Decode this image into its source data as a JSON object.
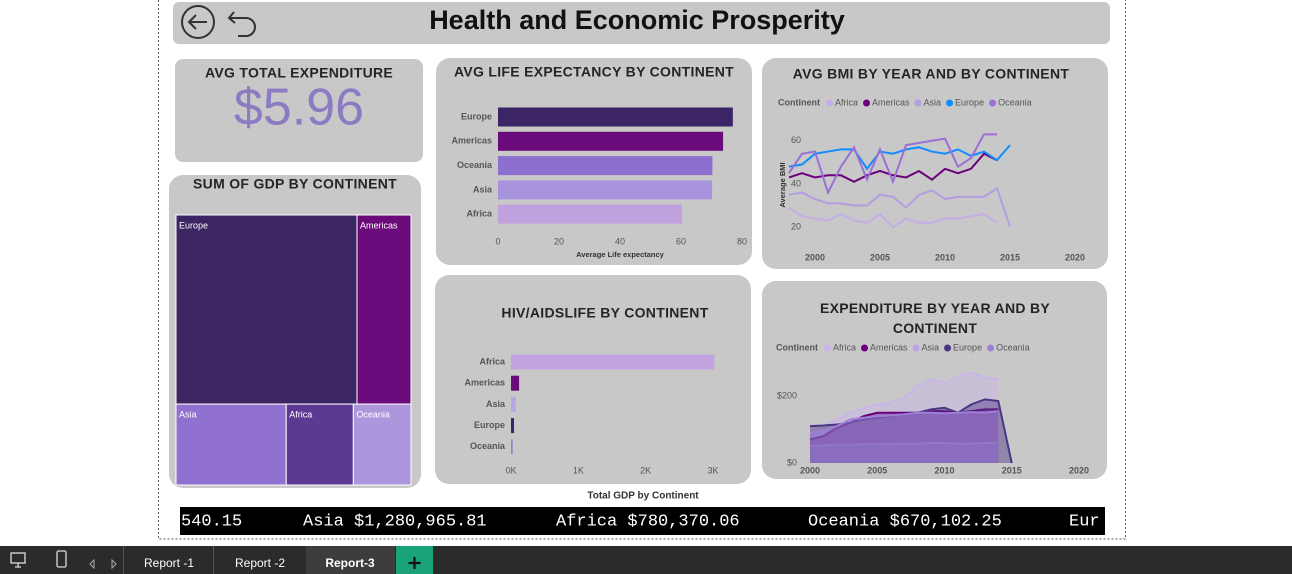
{
  "header": {
    "title": "Health and Economic Prosperity"
  },
  "card": {
    "title": "AVG TOTAL EXPENDITURE",
    "value": "$5.96"
  },
  "chart_data": [
    {
      "type": "treemap",
      "title": "SUM OF GDP BY CONTINENT",
      "categories": [
        "Europe",
        "Americas",
        "Asia",
        "Africa",
        "Oceania"
      ],
      "values": [
        4919000,
        1467000,
        1280965.81,
        780370.06,
        670102.25
      ],
      "colors": [
        "#3b2562",
        "#6b0a7b",
        "#9071cf",
        "#5c3a93",
        "#ad97dc"
      ]
    },
    {
      "type": "bar",
      "orientation": "horizontal",
      "title": "AVG LIFE EXPECTANCY BY CONTINENT",
      "categories": [
        "Europe",
        "Americas",
        "Oceania",
        "Asia",
        "Africa"
      ],
      "values": [
        77,
        73.8,
        70.3,
        70.2,
        60.3
      ],
      "colors": [
        "#3b2566",
        "#6b0a7b",
        "#8d6fcf",
        "#a893dd",
        "#bfa2dd"
      ],
      "x_label": "Average Life expectancy",
      "xlim": [
        0,
        80
      ],
      "xticks": [
        0,
        20,
        40,
        60,
        80
      ]
    },
    {
      "type": "bar",
      "orientation": "horizontal",
      "title": "HIV/AIDSLIFE BY CONTINENT",
      "categories": [
        "Africa",
        "Americas",
        "Asia",
        "Europe",
        "Oceania"
      ],
      "values": [
        3020,
        120,
        70,
        45,
        25
      ],
      "colors": [
        "#c3a3e0",
        "#6b0a7b",
        "#b8a5e4",
        "#3c2566",
        "#9a80d4"
      ],
      "x_label": "Total GDP by Continent",
      "xlim": [
        0,
        3000
      ],
      "xticks": [
        {
          "value": 0,
          "label": "0K"
        },
        {
          "value": 1000,
          "label": "1K"
        },
        {
          "value": 2000,
          "label": "2K"
        },
        {
          "value": 3000,
          "label": "3K"
        }
      ]
    },
    {
      "type": "line",
      "title": "AVG BMI BY YEAR AND BY CONTINENT",
      "legend_title": "Continent",
      "y_label": "Average BMI",
      "x": [
        1998,
        1999,
        2000,
        2001,
        2002,
        2003,
        2004,
        2005,
        2006,
        2007,
        2008,
        2009,
        2010,
        2011,
        2012,
        2013,
        2014,
        2015
      ],
      "series": [
        {
          "name": "Africa",
          "color": "#c5aee6",
          "values": [
            29,
            25,
            24,
            23,
            26,
            23,
            22,
            26,
            20,
            24,
            22,
            22,
            24,
            24,
            25,
            26,
            22,
            null
          ]
        },
        {
          "name": "Americas",
          "color": "#6b007b",
          "values": [
            43,
            45,
            43,
            44,
            44,
            41,
            44,
            46,
            44,
            43,
            46,
            42,
            47,
            45,
            47,
            54,
            51,
            null
          ]
        },
        {
          "name": "Asia",
          "color": "#b49de0",
          "values": [
            35,
            36,
            33,
            31,
            31,
            30,
            30,
            35,
            34,
            29,
            35,
            37,
            33,
            34,
            34,
            34,
            38,
            20
          ]
        },
        {
          "name": "Europe",
          "color": "#118dff",
          "values": [
            48,
            49,
            54,
            55,
            56,
            56,
            47,
            55,
            54,
            56,
            57,
            55,
            54,
            56,
            53,
            55,
            51,
            58
          ]
        },
        {
          "name": "Oceania",
          "color": "#9b6fd6",
          "values": [
            45,
            54,
            55,
            36,
            48,
            57,
            42,
            56,
            41,
            58,
            59,
            60,
            61,
            48,
            52,
            63,
            63,
            null
          ]
        }
      ],
      "xlim": [
        1998,
        2021
      ],
      "xticks": [
        2000,
        2005,
        2010,
        2015,
        2020
      ],
      "ylim": [
        14,
        65
      ],
      "yticks": [
        20,
        40,
        60
      ]
    },
    {
      "type": "area",
      "title": "EXPENDITURE BY YEAR AND BY CONTINENT",
      "legend_title": "Continent",
      "x": [
        2000,
        2001,
        2002,
        2003,
        2004,
        2005,
        2006,
        2007,
        2008,
        2009,
        2010,
        2011,
        2012,
        2013,
        2014,
        2015
      ],
      "series": [
        {
          "name": "Africa",
          "color": "#c9b5e8",
          "values": [
            95,
            110,
            130,
            150,
            165,
            175,
            180,
            195,
            230,
            250,
            240,
            260,
            270,
            255,
            250,
            null
          ]
        },
        {
          "name": "Americas",
          "color": "#6b007b",
          "values": [
            70,
            80,
            105,
            120,
            140,
            150,
            150,
            150,
            150,
            155,
            155,
            150,
            155,
            160,
            160,
            null
          ]
        },
        {
          "name": "Asia",
          "color": "#b9a4e4",
          "values": [
            50,
            52,
            55,
            55,
            56,
            57,
            57,
            58,
            58,
            60,
            60,
            58,
            58,
            60,
            60,
            null
          ]
        },
        {
          "name": "Europe",
          "color": "#4b3586",
          "values": [
            110,
            112,
            115,
            120,
            130,
            135,
            140,
            145,
            150,
            160,
            165,
            150,
            175,
            190,
            185,
            0
          ]
        },
        {
          "name": "Oceania",
          "color": "#9c7fd8",
          "values": [
            90,
            95,
            110,
            130,
            135,
            140,
            142,
            145,
            150,
            150,
            148,
            150,
            152,
            150,
            155,
            null
          ]
        }
      ],
      "xlim": [
        2000,
        2020
      ],
      "xticks": [
        2000,
        2005,
        2010,
        2015,
        2020
      ],
      "ylim": [
        0,
        280
      ],
      "yticks": [
        {
          "value": 0,
          "label": "$0"
        },
        {
          "value": 200,
          "label": "$200"
        }
      ]
    }
  ],
  "ticker": {
    "items": [
      "540.15",
      "Asia $1,280,965.81",
      "Africa $780,370.06",
      "Oceania $670,102.25",
      "Eur"
    ]
  },
  "tabs": {
    "items": [
      "Report -1",
      "Report -2",
      "Report-3"
    ],
    "active_index": 2
  }
}
